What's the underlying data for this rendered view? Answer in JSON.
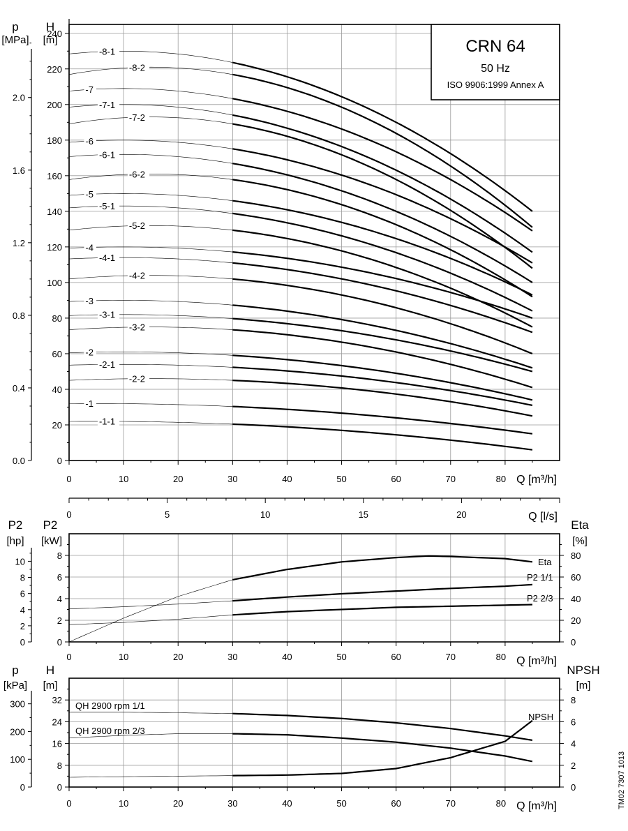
{
  "title_box": {
    "model": "CRN 64",
    "frequency": "50 Hz",
    "standard": "ISO 9906:1999 Annex A"
  },
  "side_code": "TM02 7307 1013",
  "chart_data": [
    {
      "id": "qh",
      "type": "line",
      "ylabel_left_outer": "p",
      "yunit_left_outer": "[MPa]",
      "ylabel_left": "H",
      "yunit_left": "[m]",
      "xlabel": "Q [m³/h]",
      "xlim": [
        0,
        90
      ],
      "ylim": [
        0,
        245
      ],
      "x_ticks": [
        0,
        10,
        20,
        30,
        40,
        50,
        60,
        70,
        80
      ],
      "y_ticks": [
        0,
        20,
        40,
        60,
        80,
        100,
        120,
        140,
        160,
        180,
        200,
        220,
        240
      ],
      "p_ticks": [
        "0.0",
        "0.4",
        "0.8",
        "1.2",
        "1.6",
        "2.0"
      ],
      "grid": true,
      "series": [
        {
          "name": "-8-1",
          "q_max_head": 10,
          "h_max": 230,
          "h_end": 140,
          "label_q": 5.5
        },
        {
          "name": "-8-2",
          "q_max_head": 15,
          "h_max": 221,
          "h_end": 131,
          "label_q": 11
        },
        {
          "name": "-7",
          "q_max_head": 10,
          "h_max": 209,
          "h_end": 129,
          "label_q": 3
        },
        {
          "name": "-7-1",
          "q_max_head": 10,
          "h_max": 200,
          "h_end": 117,
          "label_q": 5.5
        },
        {
          "name": "-7-2",
          "q_max_head": 15,
          "h_max": 193,
          "h_end": 108,
          "label_q": 11
        },
        {
          "name": "-6",
          "q_max_head": 10,
          "h_max": 180,
          "h_end": 111,
          "label_q": 3
        },
        {
          "name": "-6-1",
          "q_max_head": 10,
          "h_max": 172,
          "h_end": 100,
          "label_q": 5.5
        },
        {
          "name": "-6-2",
          "q_max_head": 15,
          "h_max": 161,
          "h_end": 92,
          "label_q": 11
        },
        {
          "name": "-5",
          "q_max_head": 10,
          "h_max": 150,
          "h_end": 93,
          "label_q": 3
        },
        {
          "name": "-5-1",
          "q_max_head": 10,
          "h_max": 143,
          "h_end": 84,
          "label_q": 5.5
        },
        {
          "name": "-5-2",
          "q_max_head": 15,
          "h_max": 132,
          "h_end": 75,
          "label_q": 11
        },
        {
          "name": "-4",
          "q_max_head": 10,
          "h_max": 120,
          "h_end": 80,
          "label_q": 3
        },
        {
          "name": "-4-1",
          "q_max_head": 10,
          "h_max": 114,
          "h_end": 72,
          "label_q": 5.5
        },
        {
          "name": "-4-2",
          "q_max_head": 15,
          "h_max": 104,
          "h_end": 60,
          "label_q": 11
        },
        {
          "name": "-3",
          "q_max_head": 10,
          "h_max": 90,
          "h_end": 52,
          "label_q": 3
        },
        {
          "name": "-3-1",
          "q_max_head": 10,
          "h_max": 82,
          "h_end": 50,
          "label_q": 5.5
        },
        {
          "name": "-3-2",
          "q_max_head": 15,
          "h_max": 75,
          "h_end": 41,
          "label_q": 11
        },
        {
          "name": "-2",
          "q_max_head": 10,
          "h_max": 61,
          "h_end": 34,
          "label_q": 3
        },
        {
          "name": "-2-1",
          "q_max_head": 10,
          "h_max": 54,
          "h_end": 31,
          "label_q": 5.5
        },
        {
          "name": "-2-2",
          "q_max_head": 15,
          "h_max": 46,
          "h_end": 25,
          "label_q": 11
        },
        {
          "name": "-1",
          "q_max_head": 5,
          "h_max": 32,
          "h_end": 15,
          "label_q": 3
        },
        {
          "name": "-1-1",
          "q_max_head": 5,
          "h_max": 22,
          "h_end": 6,
          "label_q": 5.5
        }
      ]
    },
    {
      "id": "ls-axis",
      "type": "axis",
      "xlabel": "Q [l/s]",
      "xlim": [
        0,
        25
      ],
      "x_ticks": [
        0,
        5,
        10,
        15,
        20
      ]
    },
    {
      "id": "power",
      "type": "line",
      "ylabel_left_outer": "P2",
      "yunit_left_outer": "[hp]",
      "ylabel_left": "P2",
      "yunit_left": "[kW]",
      "ylabel_right": "Eta",
      "yunit_right": "[%]",
      "xlabel": "Q [m³/h]",
      "xlim": [
        0,
        90
      ],
      "ylim": [
        0,
        10
      ],
      "x_ticks": [
        0,
        10,
        20,
        30,
        40,
        50,
        60,
        70,
        80
      ],
      "y_ticks": [
        0,
        2,
        4,
        6,
        8
      ],
      "hp_ticks": [
        0,
        2,
        4,
        6,
        8,
        10
      ],
      "eta_ticks": [
        0,
        20,
        40,
        60,
        80
      ],
      "grid": true,
      "series": [
        {
          "name": "Eta",
          "unit": "%",
          "x": [
            0,
            10,
            20,
            30,
            40,
            50,
            60,
            66,
            70,
            80,
            85
          ],
          "y": [
            0,
            22,
            42,
            57.5,
            67,
            74,
            78,
            79.5,
            79,
            77,
            74
          ]
        },
        {
          "name": "P2 1/1",
          "unit": "kW",
          "x": [
            0,
            10,
            20,
            30,
            40,
            50,
            60,
            70,
            80,
            85
          ],
          "y": [
            3.05,
            3.25,
            3.5,
            3.8,
            4.15,
            4.45,
            4.7,
            4.95,
            5.15,
            5.3
          ]
        },
        {
          "name": "P2 2/3",
          "unit": "kW",
          "x": [
            0,
            10,
            20,
            30,
            40,
            50,
            60,
            70,
            80,
            85
          ],
          "y": [
            1.6,
            1.8,
            2.1,
            2.5,
            2.8,
            3.0,
            3.2,
            3.3,
            3.4,
            3.45
          ]
        }
      ]
    },
    {
      "id": "npsh",
      "type": "line",
      "ylabel_left_outer": "p",
      "yunit_left_outer": "[kPa]",
      "ylabel_left": "H",
      "yunit_left": "[m]",
      "ylabel_right": "NPSH",
      "yunit_right": "[m]",
      "xlabel": "Q [m³/h]",
      "xlim": [
        0,
        90
      ],
      "ylim": [
        0,
        40
      ],
      "x_ticks": [
        0,
        10,
        20,
        30,
        40,
        50,
        60,
        70,
        80
      ],
      "y_ticks": [
        0,
        8,
        16,
        24,
        32
      ],
      "kpa_ticks": [
        0,
        100,
        200,
        300
      ],
      "npsh_ticks": [
        0,
        2,
        4,
        6,
        8
      ],
      "grid": true,
      "series": [
        {
          "name": "QH 2900 rpm 1/1",
          "unit": "m",
          "x": [
            0,
            10,
            20,
            30,
            40,
            50,
            60,
            70,
            80,
            85
          ],
          "y": [
            27.5,
            27.5,
            27.3,
            27,
            26.3,
            25.2,
            23.6,
            21.5,
            18.8,
            17.2
          ]
        },
        {
          "name": "QH 2900 rpm 2/3",
          "unit": "m",
          "x": [
            0,
            10,
            20,
            30,
            40,
            50,
            60,
            70,
            80,
            85
          ],
          "y": [
            18,
            19,
            19.6,
            19.6,
            19.2,
            18,
            16.5,
            14.3,
            11.4,
            9.4
          ]
        },
        {
          "name": "NPSH",
          "unit": "m",
          "x": [
            0,
            10,
            20,
            30,
            40,
            50,
            60,
            70,
            80,
            85
          ],
          "y": [
            0.9,
            0.95,
            1.0,
            1.05,
            1.1,
            1.25,
            1.7,
            2.7,
            4.2,
            6.1
          ]
        }
      ]
    }
  ]
}
